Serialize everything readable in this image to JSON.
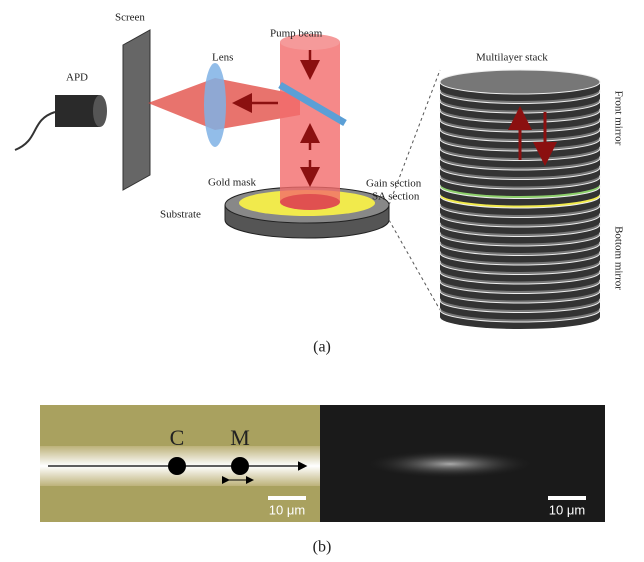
{
  "panel_a": {
    "labels": {
      "screen": "Screen",
      "apd": "APD",
      "lens": "Lens",
      "pump_beam": "Pump beam",
      "multilayer_stack": "Multilayer stack",
      "front_mirror": "Front mirror",
      "gold_mask": "Gold mask",
      "gain_section": "Gain section",
      "sa_section": "SA section",
      "substrate": "Substrate",
      "bottom_mirror": "Bottom mirror"
    },
    "caption": "(a)"
  },
  "panel_b": {
    "points": [
      "C",
      "M"
    ],
    "scale_bars": [
      "10 μm",
      "10 μm"
    ],
    "caption": "(b)"
  }
}
